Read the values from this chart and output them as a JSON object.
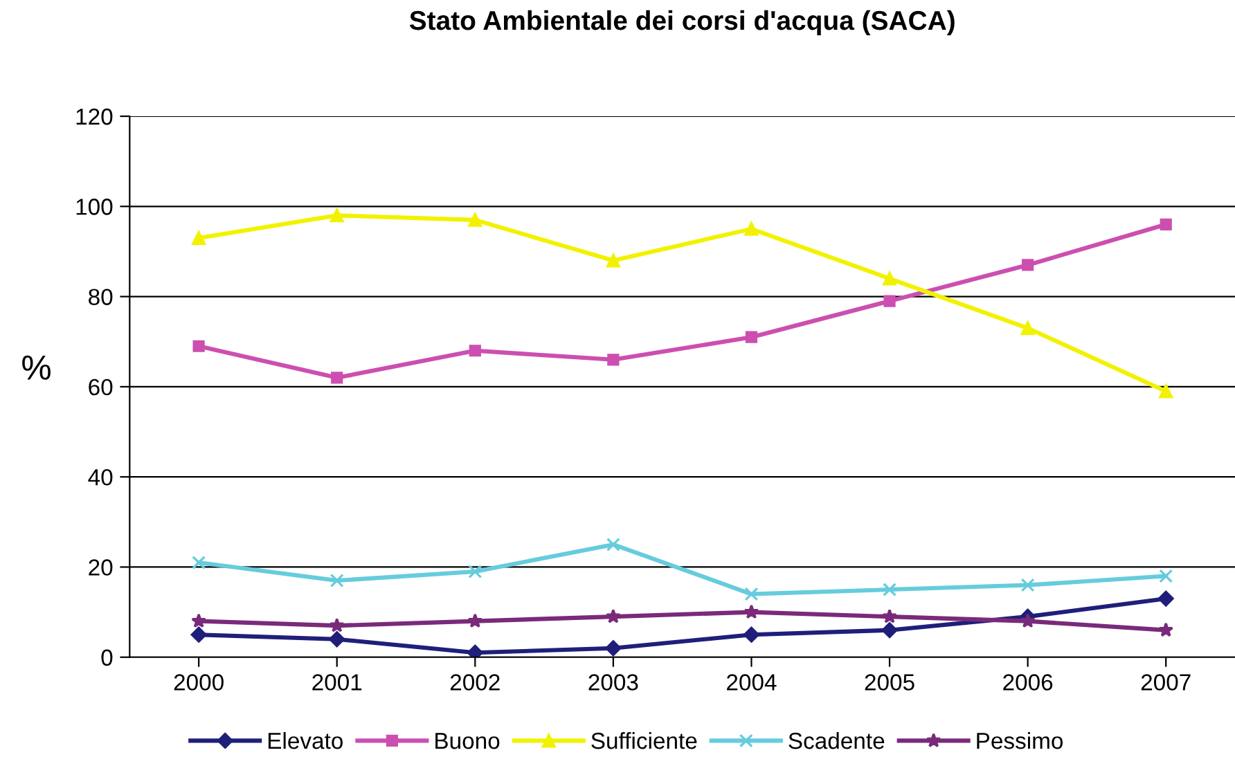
{
  "chart_data": {
    "type": "line",
    "title": "Stato Ambientale dei corsi d'acqua (SACA)",
    "ylabel": "%",
    "categories": [
      "2000",
      "2001",
      "2002",
      "2003",
      "2004",
      "2005",
      "2006",
      "2007"
    ],
    "ylim": [
      0,
      120
    ],
    "yticks": [
      0,
      20,
      40,
      60,
      80,
      100,
      120
    ],
    "grid": "y",
    "legend": "bottom",
    "series": [
      {
        "name": "Elevato",
        "color": "#1f1f7a",
        "marker": "diamond",
        "values": [
          5,
          4,
          1,
          2,
          5,
          6,
          9,
          13
        ]
      },
      {
        "name": "Buono",
        "color": "#cc4fb0",
        "marker": "square",
        "values": [
          69,
          62,
          68,
          66,
          71,
          79,
          87,
          96
        ]
      },
      {
        "name": "Sufficiente",
        "color": "#f2f200",
        "marker": "triangle",
        "values": [
          93,
          98,
          97,
          88,
          95,
          84,
          73,
          59
        ]
      },
      {
        "name": "Scadente",
        "color": "#66ccdd",
        "marker": "cross",
        "values": [
          21,
          17,
          19,
          25,
          14,
          15,
          16,
          18
        ]
      },
      {
        "name": "Pessimo",
        "color": "#7a2a7a",
        "marker": "star",
        "values": [
          8,
          7,
          8,
          9,
          10,
          9,
          8,
          6
        ]
      }
    ]
  }
}
